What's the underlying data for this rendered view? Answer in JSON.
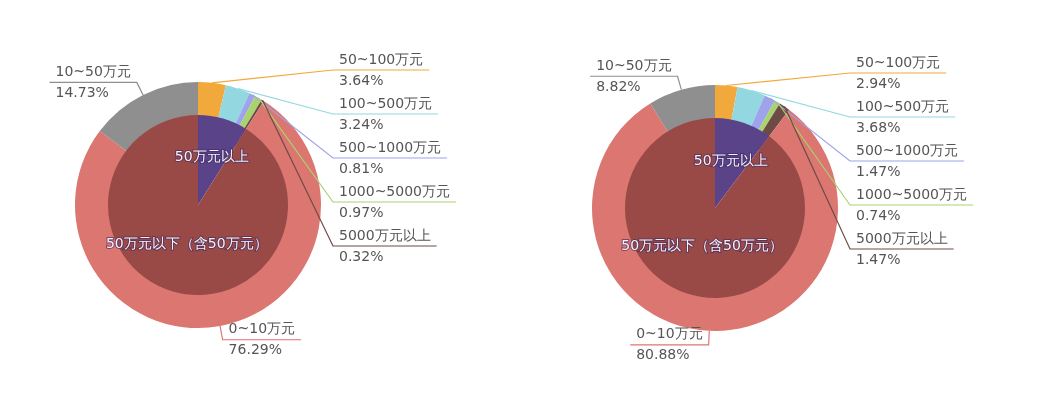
{
  "chart_data": [
    {
      "type": "pie",
      "categories": [
        "50万元以上",
        "50万元以下（含50万元）"
      ],
      "values": [
        8.98,
        91.02
      ],
      "colors": [
        "#5b4389",
        "#9a4a46"
      ]
    },
    {
      "type": "donut",
      "categories": [
        "50~100万元",
        "100~500万元",
        "500~1000万元",
        "1000~5000万元",
        "5000万元以上",
        "0~10万元",
        "10~50万元"
      ],
      "values": [
        3.64,
        3.24,
        0.81,
        0.97,
        0.32,
        76.29,
        14.73
      ],
      "colors": [
        "#f2a93b",
        "#93d8e0",
        "#9ea3eb",
        "#a9d36f",
        "#6e4a45",
        "#db7670",
        "#8f8f8f"
      ],
      "value_labels": [
        "3.64%",
        "3.24%",
        "0.81%",
        "0.97%",
        "0.32%",
        "76.29%",
        "14.73%"
      ]
    },
    {
      "type": "pie",
      "categories": [
        "50万元以上",
        "50万元以下（含50万元）"
      ],
      "values": [
        10.3,
        89.7
      ],
      "colors": [
        "#5b4389",
        "#9a4a46"
      ]
    },
    {
      "type": "donut",
      "categories": [
        "50~100万元",
        "100~500万元",
        "500~1000万元",
        "1000~5000万元",
        "5000万元以上",
        "0~10万元",
        "10~50万元"
      ],
      "values": [
        2.94,
        3.68,
        1.47,
        0.74,
        1.47,
        80.88,
        8.82
      ],
      "colors": [
        "#f2a93b",
        "#93d8e0",
        "#9ea3eb",
        "#a9d36f",
        "#6e4a45",
        "#db7670",
        "#8f8f8f"
      ],
      "value_labels": [
        "2.94%",
        "3.68%",
        "1.47%",
        "0.74%",
        "1.47%",
        "80.88%",
        "8.82%"
      ]
    }
  ]
}
